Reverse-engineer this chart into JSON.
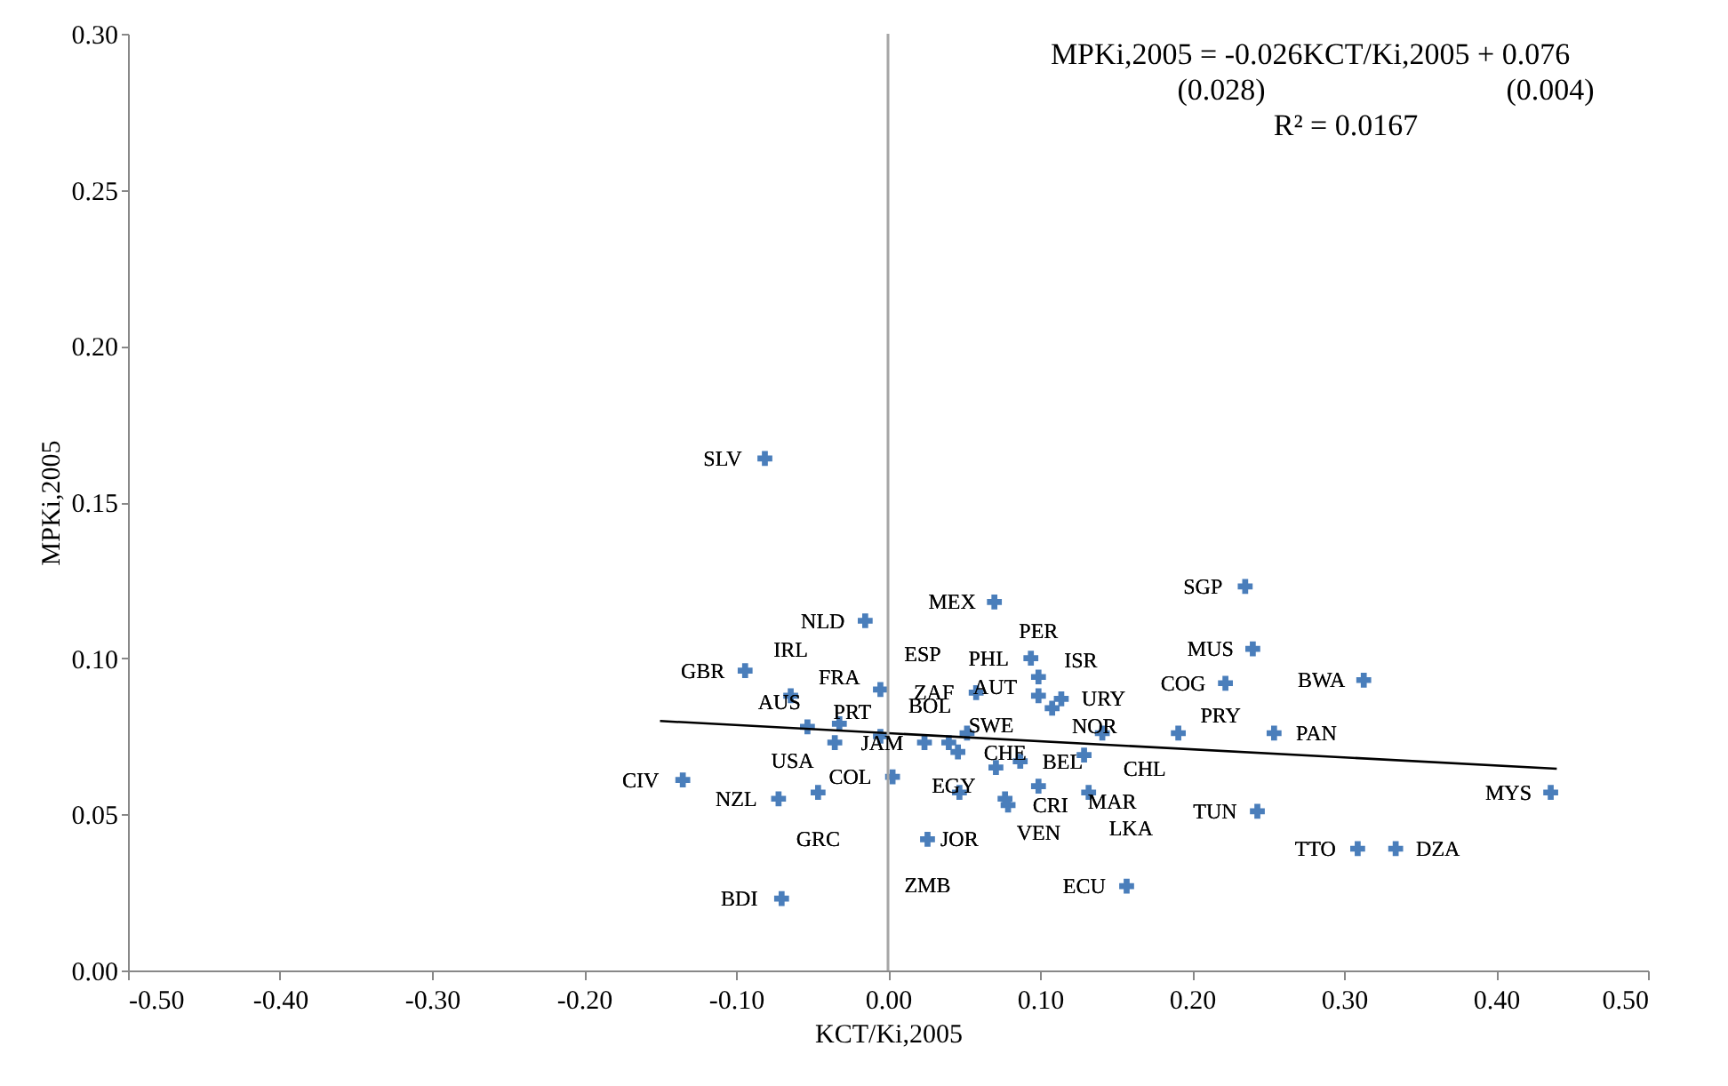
{
  "chart_data": {
    "type": "scatter",
    "xlabel": "KCT/Ki,2005",
    "ylabel": "MPKi,2005",
    "xlim": [
      -0.5,
      0.5
    ],
    "ylim": [
      0,
      0.3
    ],
    "xticks": [
      {
        "value": -0.5,
        "label": "-0.50"
      },
      {
        "value": -0.4,
        "label": "-0.40"
      },
      {
        "value": -0.3,
        "label": "-0.30"
      },
      {
        "value": -0.2,
        "label": "-0.20"
      },
      {
        "value": -0.1,
        "label": "-0.10"
      },
      {
        "value": 0,
        "label": "0.00"
      },
      {
        "value": 0.1,
        "label": "0.10"
      },
      {
        "value": 0.2,
        "label": "0.20"
      },
      {
        "value": 0.3,
        "label": "0.30"
      },
      {
        "value": 0.4,
        "label": "0.40"
      },
      {
        "value": 0.5,
        "label": "0.50"
      }
    ],
    "yticks": [
      {
        "value": 0,
        "label": "0.00"
      },
      {
        "value": 0.05,
        "label": "0.05"
      },
      {
        "value": 0.1,
        "label": "0.10"
      },
      {
        "value": 0.15,
        "label": "0.15"
      },
      {
        "value": 0.2,
        "label": "0.20"
      },
      {
        "value": 0.25,
        "label": "0.25"
      },
      {
        "value": 0.3,
        "label": "0.30"
      }
    ],
    "grid": false,
    "ref_lines": [
      {
        "axis": "x",
        "value": 0,
        "color": "#a6a6a6"
      }
    ],
    "series": [
      {
        "type": "scatter",
        "color": "#4a7ebb",
        "marker": "cross",
        "x": [
          -0.081,
          -0.094,
          -0.015,
          -0.064,
          -0.135,
          -0.072,
          -0.046,
          -0.07,
          -0.053,
          -0.035,
          -0.032,
          -0.005,
          0.003,
          0.026,
          0.07,
          0.094,
          0.058,
          0.099,
          0.114,
          0.099,
          0.108,
          0.141,
          0.129,
          0.024,
          0.052,
          0.04,
          0.046,
          0.071,
          0.087,
          0.099,
          0.079,
          0.047,
          0.077,
          0.132,
          0.157,
          0.191,
          0.254,
          0.222,
          0.24,
          0.235,
          0.313,
          0.243,
          0.309,
          0.334,
          0.436,
          -0.005
        ],
        "values": [
          0.164,
          0.096,
          0.112,
          0.088,
          0.061,
          0.055,
          0.057,
          0.023,
          0.078,
          0.073,
          0.079,
          0.075,
          0.062,
          0.042,
          0.118,
          0.1,
          0.089,
          0.094,
          0.087,
          0.088,
          0.084,
          0.076,
          0.069,
          0.073,
          0.076,
          0.073,
          0.07,
          0.065,
          0.067,
          0.059,
          0.053,
          0.057,
          0.055,
          0.057,
          0.027,
          0.076,
          0.076,
          0.092,
          0.103,
          0.123,
          0.093,
          0.051,
          0.039,
          0.039,
          0.057,
          0.09
        ]
      },
      {
        "type": "line",
        "color": "#000000",
        "marker": "none",
        "x": [
          -0.15,
          0.44
        ],
        "values": [
          0.0799,
          0.0646
        ]
      }
    ],
    "annotations": [
      {
        "text": "MPKi,2005 = -0.026KCT/Ki,2005 + 0.076"
      },
      {
        "text": "(0.028)"
      },
      {
        "text": "(0.004)"
      },
      {
        "text": "R² = 0.0167"
      },
      {
        "text": "SLV",
        "x": -0.081,
        "y": 0.164
      },
      {
        "text": "GBR",
        "x": -0.094,
        "y": 0.096
      },
      {
        "text": "NLD",
        "x": -0.015,
        "y": 0.112
      },
      {
        "text": "IRL",
        "x": -0.064,
        "y": 0.088
      },
      {
        "text": "CIV",
        "x": -0.135,
        "y": 0.061
      },
      {
        "text": "NZL",
        "x": -0.072,
        "y": 0.055
      },
      {
        "text": "GRC",
        "x": -0.046,
        "y": 0.057
      },
      {
        "text": "BDI",
        "x": -0.07,
        "y": 0.023
      },
      {
        "text": "AUS",
        "x": -0.053,
        "y": 0.078
      },
      {
        "text": "USA",
        "x": -0.035,
        "y": 0.073
      },
      {
        "text": "FRA",
        "x": -0.032,
        "y": 0.079
      },
      {
        "text": "PRT",
        "x": -0.005,
        "y": 0.075
      },
      {
        "text": "COL",
        "x": 0.003,
        "y": 0.062
      },
      {
        "text": "ZMB",
        "x": 0.026,
        "y": 0.042
      },
      {
        "text": "MEX",
        "x": 0.07,
        "y": 0.118
      },
      {
        "text": "PHL",
        "x": 0.094,
        "y": 0.1
      },
      {
        "text": "ZAF",
        "x": 0.058,
        "y": 0.089
      },
      {
        "text": "PER",
        "x": 0.099,
        "y": 0.094
      },
      {
        "text": "URY",
        "x": 0.114,
        "y": 0.087
      },
      {
        "text": "ISR",
        "x": 0.099,
        "y": 0.088
      },
      {
        "text": "NOR",
        "x": 0.108,
        "y": 0.084
      },
      {
        "text": "CHL",
        "x": 0.141,
        "y": 0.076
      },
      {
        "text": "MAR",
        "x": 0.129,
        "y": 0.069
      },
      {
        "text": "JAM",
        "x": 0.024,
        "y": 0.073
      },
      {
        "text": "AUT",
        "x": 0.052,
        "y": 0.076
      },
      {
        "text": "SWE",
        "x": 0.04,
        "y": 0.073
      },
      {
        "text": "BOL",
        "x": 0.046,
        "y": 0.07
      },
      {
        "text": "EGY",
        "x": 0.071,
        "y": 0.065
      },
      {
        "text": "BEL",
        "x": 0.087,
        "y": 0.067
      },
      {
        "text": "VEN",
        "x": 0.099,
        "y": 0.059
      },
      {
        "text": "CRI",
        "x": 0.079,
        "y": 0.053
      },
      {
        "text": "JOR",
        "x": 0.047,
        "y": 0.057
      },
      {
        "text": "CHE",
        "x": 0.077,
        "y": 0.055
      },
      {
        "text": "LKA",
        "x": 0.132,
        "y": 0.057
      },
      {
        "text": "ECU",
        "x": 0.157,
        "y": 0.027
      },
      {
        "text": "PRY",
        "x": 0.191,
        "y": 0.076
      },
      {
        "text": "PAN",
        "x": 0.254,
        "y": 0.076
      },
      {
        "text": "COG",
        "x": 0.222,
        "y": 0.092
      },
      {
        "text": "MUS",
        "x": 0.24,
        "y": 0.103
      },
      {
        "text": "SGP",
        "x": 0.235,
        "y": 0.123
      },
      {
        "text": "BWA",
        "x": 0.313,
        "y": 0.093
      },
      {
        "text": "TUN",
        "x": 0.243,
        "y": 0.051
      },
      {
        "text": "TTO",
        "x": 0.309,
        "y": 0.039
      },
      {
        "text": "DZA",
        "x": 0.334,
        "y": 0.039
      },
      {
        "text": "MYS",
        "x": 0.436,
        "y": 0.057
      },
      {
        "text": "ESP",
        "x": -0.005,
        "y": 0.09
      }
    ]
  }
}
